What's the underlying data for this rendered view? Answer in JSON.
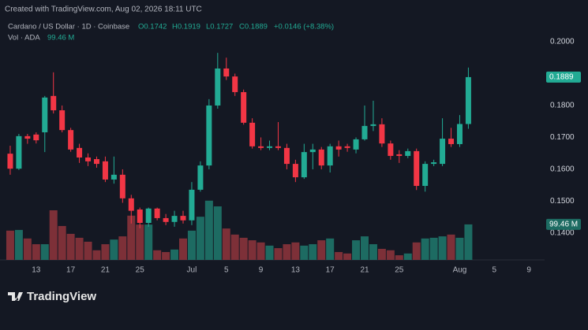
{
  "header": {
    "created": "Created with TradingView.com, Aug 02, 2026 18:11 UTC",
    "symbol": "Cardano / US Dollar · 1D · Coinbase",
    "open": "O0.1742",
    "high": "H0.1919",
    "low": "L0.1727",
    "close": "C0.1889",
    "change": "+0.0146 (+8.38%)",
    "vol_title": "Vol · ADA",
    "vol_value": "99.46 M"
  },
  "footer": {
    "brand": "TradingView"
  },
  "chart_data": {
    "type": "candlestick",
    "x": [
      "2026-06-10",
      "2026-06-11",
      "2026-06-12",
      "2026-06-13",
      "2026-06-14",
      "2026-06-15",
      "2026-06-16",
      "2026-06-17",
      "2026-06-18",
      "2026-06-19",
      "2026-06-20",
      "2026-06-21",
      "2026-06-22",
      "2026-06-23",
      "2026-06-24",
      "2026-06-25",
      "2026-06-26",
      "2026-06-27",
      "2026-06-28",
      "2026-06-29",
      "2026-06-30",
      "2026-07-01",
      "2026-07-02",
      "2026-07-03",
      "2026-07-04",
      "2026-07-05",
      "2026-07-06",
      "2026-07-07",
      "2026-07-08",
      "2026-07-09",
      "2026-07-10",
      "2026-07-11",
      "2026-07-12",
      "2026-07-13",
      "2026-07-14",
      "2026-07-15",
      "2026-07-16",
      "2026-07-17",
      "2026-07-18",
      "2026-07-19",
      "2026-07-20",
      "2026-07-21",
      "2026-07-22",
      "2026-07-23",
      "2026-07-24",
      "2026-07-25",
      "2026-07-26",
      "2026-07-27",
      "2026-07-28",
      "2026-07-29",
      "2026-07-30",
      "2026-07-31",
      "2026-08-01",
      "2026-08-02"
    ],
    "open": [
      0.1649,
      0.1602,
      0.1704,
      0.1709,
      0.1716,
      0.183,
      0.1785,
      0.1723,
      0.1667,
      0.1637,
      0.1632,
      0.1625,
      0.1568,
      0.1583,
      0.1509,
      0.1474,
      0.1432,
      0.1477,
      0.1447,
      0.1435,
      0.1454,
      0.144,
      0.1536,
      0.1612,
      0.18,
      0.1916,
      0.1891,
      0.1842,
      0.1746,
      0.1672,
      0.1667,
      0.1672,
      0.1667,
      0.1617,
      0.1575,
      0.1654,
      0.1662,
      0.1612,
      0.1672,
      0.1672,
      0.1662,
      0.1694,
      0.1736,
      0.1741,
      0.1681,
      0.1647,
      0.1642,
      0.1657,
      0.1548,
      0.1617,
      0.1617,
      0.1696,
      0.1679,
      0.1742
    ],
    "high": [
      0.1674,
      0.1711,
      0.1711,
      0.1716,
      0.183,
      0.1904,
      0.18,
      0.173,
      0.168,
      0.165,
      0.164,
      0.164,
      0.164,
      0.16,
      0.152,
      0.148,
      0.148,
      0.148,
      0.146,
      0.147,
      0.147,
      0.156,
      0.1625,
      0.182,
      0.1965,
      0.195,
      0.19,
      0.185,
      0.176,
      0.17,
      0.169,
      0.1748,
      0.168,
      0.163,
      0.168,
      0.168,
      0.167,
      0.168,
      0.169,
      0.168,
      0.17,
      0.18,
      0.1815,
      0.176,
      0.169,
      0.166,
      0.1665,
      0.1665,
      0.1625,
      0.163,
      0.176,
      0.173,
      0.177,
      0.1919
    ],
    "low": [
      0.1583,
      0.1598,
      0.168,
      0.1681,
      0.1654,
      0.1775,
      0.1716,
      0.1655,
      0.162,
      0.161,
      0.1605,
      0.156,
      0.1555,
      0.1495,
      0.143,
      0.1415,
      0.142,
      0.144,
      0.1425,
      0.142,
      0.143,
      0.1425,
      0.153,
      0.16,
      0.179,
      0.188,
      0.183,
      0.174,
      0.1665,
      0.166,
      0.166,
      0.166,
      0.16,
      0.156,
      0.157,
      0.16,
      0.16,
      0.159,
      0.164,
      0.1655,
      0.165,
      0.169,
      0.172,
      0.167,
      0.163,
      0.162,
      0.1635,
      0.1535,
      0.153,
      0.161,
      0.161,
      0.167,
      0.167,
      0.1727
    ],
    "close": [
      0.1602,
      0.1704,
      0.1696,
      0.1691,
      0.1825,
      0.1785,
      0.1723,
      0.1662,
      0.1637,
      0.1625,
      0.1617,
      0.1568,
      0.1583,
      0.1509,
      0.147,
      0.1432,
      0.1477,
      0.1447,
      0.1435,
      0.1454,
      0.144,
      0.1536,
      0.1612,
      0.18,
      0.1916,
      0.1891,
      0.1842,
      0.1746,
      0.1672,
      0.1667,
      0.1672,
      0.1667,
      0.1617,
      0.1575,
      0.1654,
      0.1662,
      0.1612,
      0.1672,
      0.1662,
      0.1667,
      0.1694,
      0.1736,
      0.1741,
      0.1681,
      0.1642,
      0.1642,
      0.1657,
      0.1548,
      0.1617,
      0.1622,
      0.1696,
      0.1679,
      0.1742,
      0.1889
    ],
    "volume": [
      82,
      84,
      60,
      44,
      44,
      139,
      95,
      73,
      62,
      51,
      27,
      44,
      57,
      66,
      124,
      99,
      99,
      27,
      22,
      29,
      60,
      82,
      121,
      166,
      150,
      88,
      71,
      62,
      55,
      49,
      40,
      33,
      44,
      49,
      40,
      44,
      55,
      60,
      22,
      18,
      55,
      66,
      44,
      31,
      27,
      13,
      18,
      49,
      60,
      62,
      66,
      71,
      62,
      99.46
    ],
    "up_color": "#22ab94",
    "down_color": "#f23645",
    "up_volume_color": "#1d6b62",
    "down_volume_color": "#7d3038",
    "xlim": [
      "2026-06-09",
      "2026-08-11"
    ],
    "xticks": [
      {
        "value": "2026-06-13",
        "label": "13"
      },
      {
        "value": "2026-06-17",
        "label": "17"
      },
      {
        "value": "2026-06-21",
        "label": "21"
      },
      {
        "value": "2026-06-25",
        "label": "25"
      },
      {
        "value": "2026-07-01",
        "label": "Jul"
      },
      {
        "value": "2026-07-05",
        "label": "5"
      },
      {
        "value": "2026-07-09",
        "label": "9"
      },
      {
        "value": "2026-07-13",
        "label": "13"
      },
      {
        "value": "2026-07-17",
        "label": "17"
      },
      {
        "value": "2026-07-21",
        "label": "21"
      },
      {
        "value": "2026-07-25",
        "label": "25"
      },
      {
        "value": "2026-08-01",
        "label": "Aug"
      },
      {
        "value": "2026-08-05",
        "label": "5"
      },
      {
        "value": "2026-08-09",
        "label": "9"
      }
    ],
    "ylim": [
      0.1316,
      0.2032
    ],
    "yticks": [
      {
        "value": 0.2,
        "label": "0.2000"
      },
      {
        "value": 0.18,
        "label": "0.1800"
      },
      {
        "value": 0.17,
        "label": "0.1700"
      },
      {
        "value": 0.16,
        "label": "0.1600"
      },
      {
        "value": 0.15,
        "label": "0.1500"
      },
      {
        "value": 0.14,
        "label": "0.1400"
      }
    ],
    "volume_lim": [
      0,
      640
    ],
    "price_label": {
      "value": 0.1889,
      "label": "0.1889"
    },
    "volume_label": {
      "value": 99.46,
      "label": "99.46 M"
    }
  }
}
